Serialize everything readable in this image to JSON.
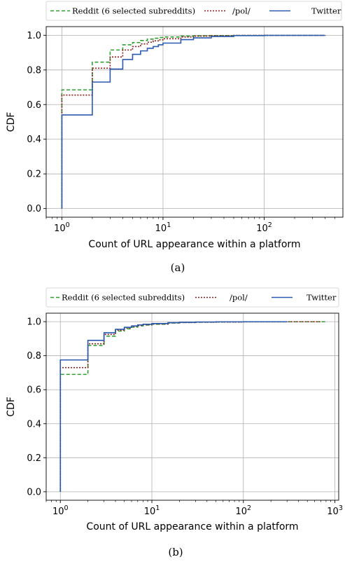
{
  "chart_data": [
    {
      "type": "line",
      "step": true,
      "caption": "(a)",
      "title": "",
      "xlabel": "Count of URL appearance within a platform",
      "ylabel": "CDF",
      "xscale": "log",
      "xlim": [
        0.7,
        600
      ],
      "ylim": [
        -0.05,
        1.05
      ],
      "xticks": [
        {
          "v": 1,
          "base": "10",
          "exp": "0"
        },
        {
          "v": 10,
          "base": "10",
          "exp": "1"
        },
        {
          "v": 100,
          "base": "10",
          "exp": "2"
        }
      ],
      "yticks": [
        {
          "v": 0.0,
          "label": "0.0"
        },
        {
          "v": 0.2,
          "label": "0.2"
        },
        {
          "v": 0.4,
          "label": "0.4"
        },
        {
          "v": 0.6,
          "label": "0.6"
        },
        {
          "v": 0.8,
          "label": "0.8"
        },
        {
          "v": 1.0,
          "label": "1.0"
        }
      ],
      "grid": true,
      "legend": "top",
      "series": [
        {
          "name": "Reddit (6 selected subreddits)",
          "color": "#2ca02c",
          "dash": "5,3",
          "x": [
            1,
            2,
            3,
            4,
            5,
            6,
            7,
            8,
            9,
            10,
            15,
            20,
            30,
            50,
            100,
            400
          ],
          "y": [
            0.685,
            0.845,
            0.915,
            0.945,
            0.958,
            0.97,
            0.978,
            0.983,
            0.987,
            0.99,
            0.995,
            0.997,
            0.998,
            0.999,
            0.9995,
            1.0
          ]
        },
        {
          "name": "/pol/",
          "color": "#8b1a1a",
          "dash": "2,2",
          "x": [
            1,
            2,
            3,
            4,
            5,
            6,
            7,
            8,
            9,
            10,
            15,
            20,
            30,
            50,
            100,
            400
          ],
          "y": [
            0.655,
            0.81,
            0.875,
            0.915,
            0.935,
            0.95,
            0.96,
            0.968,
            0.974,
            0.98,
            0.99,
            0.995,
            0.997,
            0.999,
            0.9995,
            1.0
          ]
        },
        {
          "name": "Twitter",
          "color": "#2a5ab0",
          "dash": "",
          "x": [
            1,
            2,
            3,
            4,
            5,
            6,
            7,
            8,
            9,
            10,
            15,
            20,
            30,
            50,
            100,
            400
          ],
          "y": [
            0.54,
            0.73,
            0.805,
            0.86,
            0.89,
            0.91,
            0.925,
            0.935,
            0.945,
            0.955,
            0.975,
            0.985,
            0.993,
            0.998,
            0.9995,
            1.0
          ]
        }
      ]
    },
    {
      "type": "line",
      "step": true,
      "caption": "(b)",
      "title": "",
      "xlabel": "Count of URL appearance within a platform",
      "ylabel": "CDF",
      "xscale": "log",
      "xlim": [
        0.7,
        1100
      ],
      "ylim": [
        -0.05,
        1.05
      ],
      "xticks": [
        {
          "v": 1,
          "base": "10",
          "exp": "0"
        },
        {
          "v": 10,
          "base": "10",
          "exp": "1"
        },
        {
          "v": 100,
          "base": "10",
          "exp": "2"
        },
        {
          "v": 1000,
          "base": "10",
          "exp": "3"
        }
      ],
      "yticks": [
        {
          "v": 0.0,
          "label": "0.0"
        },
        {
          "v": 0.2,
          "label": "0.2"
        },
        {
          "v": 0.4,
          "label": "0.4"
        },
        {
          "v": 0.6,
          "label": "0.6"
        },
        {
          "v": 0.8,
          "label": "0.8"
        },
        {
          "v": 1.0,
          "label": "1.0"
        }
      ],
      "grid": true,
      "legend": "top",
      "series": [
        {
          "name": "Reddit (6 selected subreddits)",
          "color": "#2ca02c",
          "dash": "5,3",
          "x": [
            1,
            2,
            3,
            4,
            5,
            6,
            7,
            8,
            10,
            15,
            20,
            30,
            50,
            100,
            300,
            800
          ],
          "y": [
            0.69,
            0.86,
            0.915,
            0.945,
            0.958,
            0.968,
            0.975,
            0.98,
            0.985,
            0.992,
            0.995,
            0.997,
            0.998,
            0.999,
            0.9995,
            1.0
          ]
        },
        {
          "name": "/pol/",
          "color": "#8b1a1a",
          "dash": "2,2",
          "x": [
            1,
            2,
            3,
            4,
            5,
            6,
            7,
            8,
            10,
            15,
            20,
            30,
            50,
            100,
            300,
            700
          ],
          "y": [
            0.73,
            0.87,
            0.925,
            0.95,
            0.963,
            0.972,
            0.978,
            0.982,
            0.987,
            0.993,
            0.995,
            0.997,
            0.998,
            0.999,
            0.9995,
            1.0
          ]
        },
        {
          "name": "Twitter",
          "color": "#2a5ab0",
          "dash": "",
          "x": [
            1,
            2,
            3,
            4,
            5,
            6,
            7,
            8,
            10,
            15,
            20,
            30,
            50,
            100,
            300
          ],
          "y": [
            0.775,
            0.89,
            0.935,
            0.955,
            0.967,
            0.975,
            0.981,
            0.985,
            0.989,
            0.994,
            0.996,
            0.998,
            0.999,
            0.9995,
            1.0
          ]
        }
      ]
    }
  ]
}
